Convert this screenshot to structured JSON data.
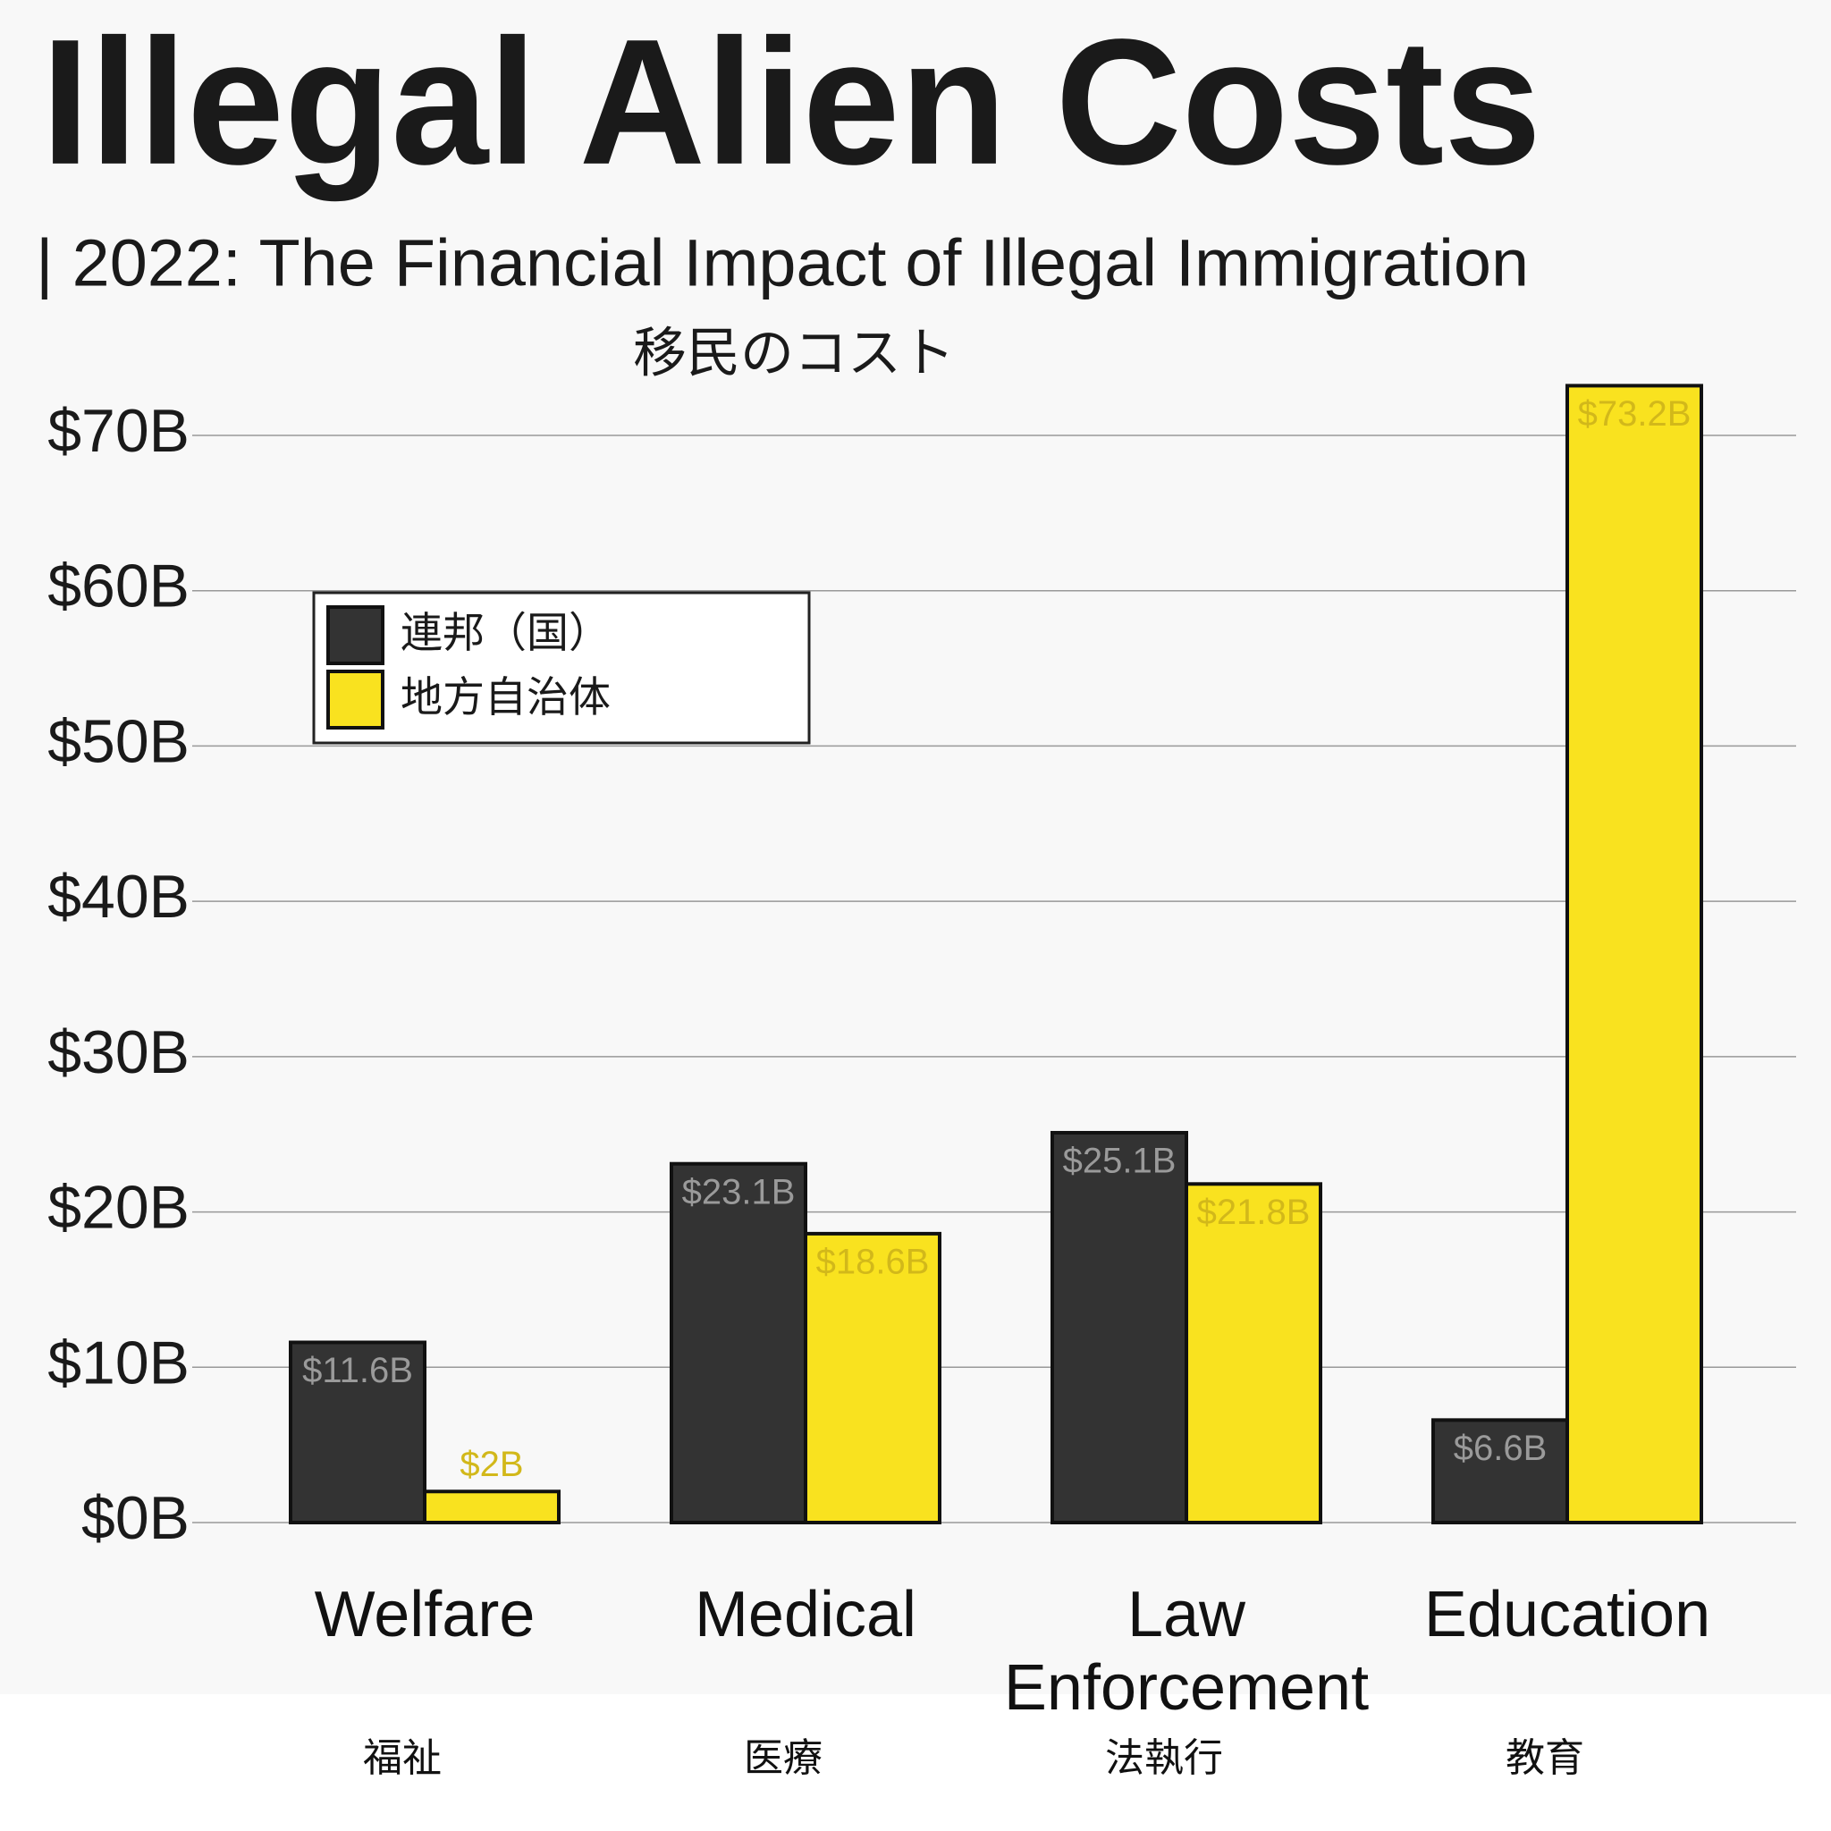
{
  "chart_data": {
    "type": "bar",
    "title": "Illegal Alien Costs",
    "subtitle": "| 2022: The Financial Impact of Illegal Immigration",
    "chart_title": "移民のコスト",
    "categories": [
      "Welfare",
      "Medical",
      "Law Enforcement",
      "Education"
    ],
    "category_labels_ja": [
      "福祉",
      "医療",
      "法執行",
      "教育"
    ],
    "series": [
      {
        "name": "連邦（国）",
        "color": "#333333",
        "values": [
          11.6,
          23.1,
          25.1,
          6.6
        ],
        "value_labels": [
          "$11.6B",
          "$23.1B",
          "$25.1B",
          "$6.6B"
        ]
      },
      {
        "name": "地方自治体",
        "color": "#f9e21f",
        "values": [
          2,
          18.6,
          21.8,
          73.2
        ],
        "value_labels": [
          "$2B",
          "$18.6B",
          "$21.8B",
          "$73.2B"
        ]
      }
    ],
    "ylim": [
      0,
      75
    ],
    "yticks": [
      {
        "value": 0,
        "label": "$0B"
      },
      {
        "value": 10,
        "label": "$10B"
      },
      {
        "value": 20,
        "label": "$20B"
      },
      {
        "value": 30,
        "label": "$30B"
      },
      {
        "value": 40,
        "label": "$40B"
      },
      {
        "value": 50,
        "label": "$50B"
      },
      {
        "value": 60,
        "label": "$60B"
      },
      {
        "value": 70,
        "label": "$70B"
      }
    ],
    "grid": true,
    "legend": "upper-left"
  }
}
